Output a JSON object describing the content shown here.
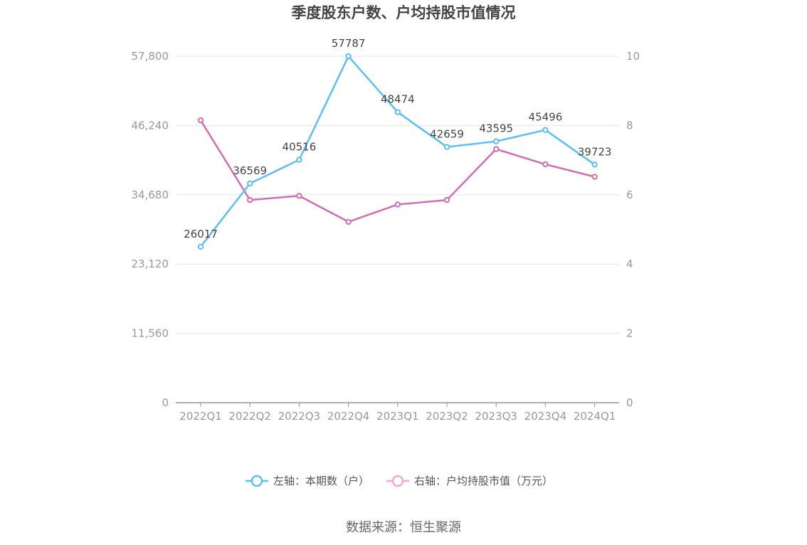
{
  "chart_data": {
    "type": "line",
    "title": "季度股东户数、户均持股市值情况",
    "categories": [
      "2022Q1",
      "2022Q2",
      "2022Q3",
      "2022Q4",
      "2023Q1",
      "2023Q2",
      "2023Q3",
      "2023Q4",
      "2024Q1"
    ],
    "left_axis": {
      "ticks": [
        "0",
        "11,560",
        "23,120",
        "34,680",
        "46,240",
        "57,800"
      ],
      "min": 0,
      "max": 57800
    },
    "right_axis": {
      "ticks": [
        "0",
        "2",
        "4",
        "6",
        "8",
        "10"
      ],
      "min": 0,
      "max": 10
    },
    "series": [
      {
        "name": "左轴：本期数（户）",
        "axis": "left",
        "color": "#5bc0f0",
        "values": [
          26017,
          36569,
          40516,
          57787,
          48474,
          42659,
          43595,
          45496,
          39723
        ],
        "labels": [
          "26017",
          "36569",
          "40516",
          "57787",
          "48474",
          "42659",
          "43595",
          "45496",
          "39723"
        ]
      },
      {
        "name": "右轴：户均持股市值（万元）",
        "axis": "right",
        "color": "#d46cb3",
        "legend_color": "#f0a8d4",
        "values": [
          8.15,
          5.85,
          5.97,
          5.22,
          5.72,
          5.85,
          7.32,
          6.88,
          6.52
        ]
      }
    ],
    "grid": true,
    "legend_position": "bottom",
    "source": "数据来源：恒生聚源"
  }
}
